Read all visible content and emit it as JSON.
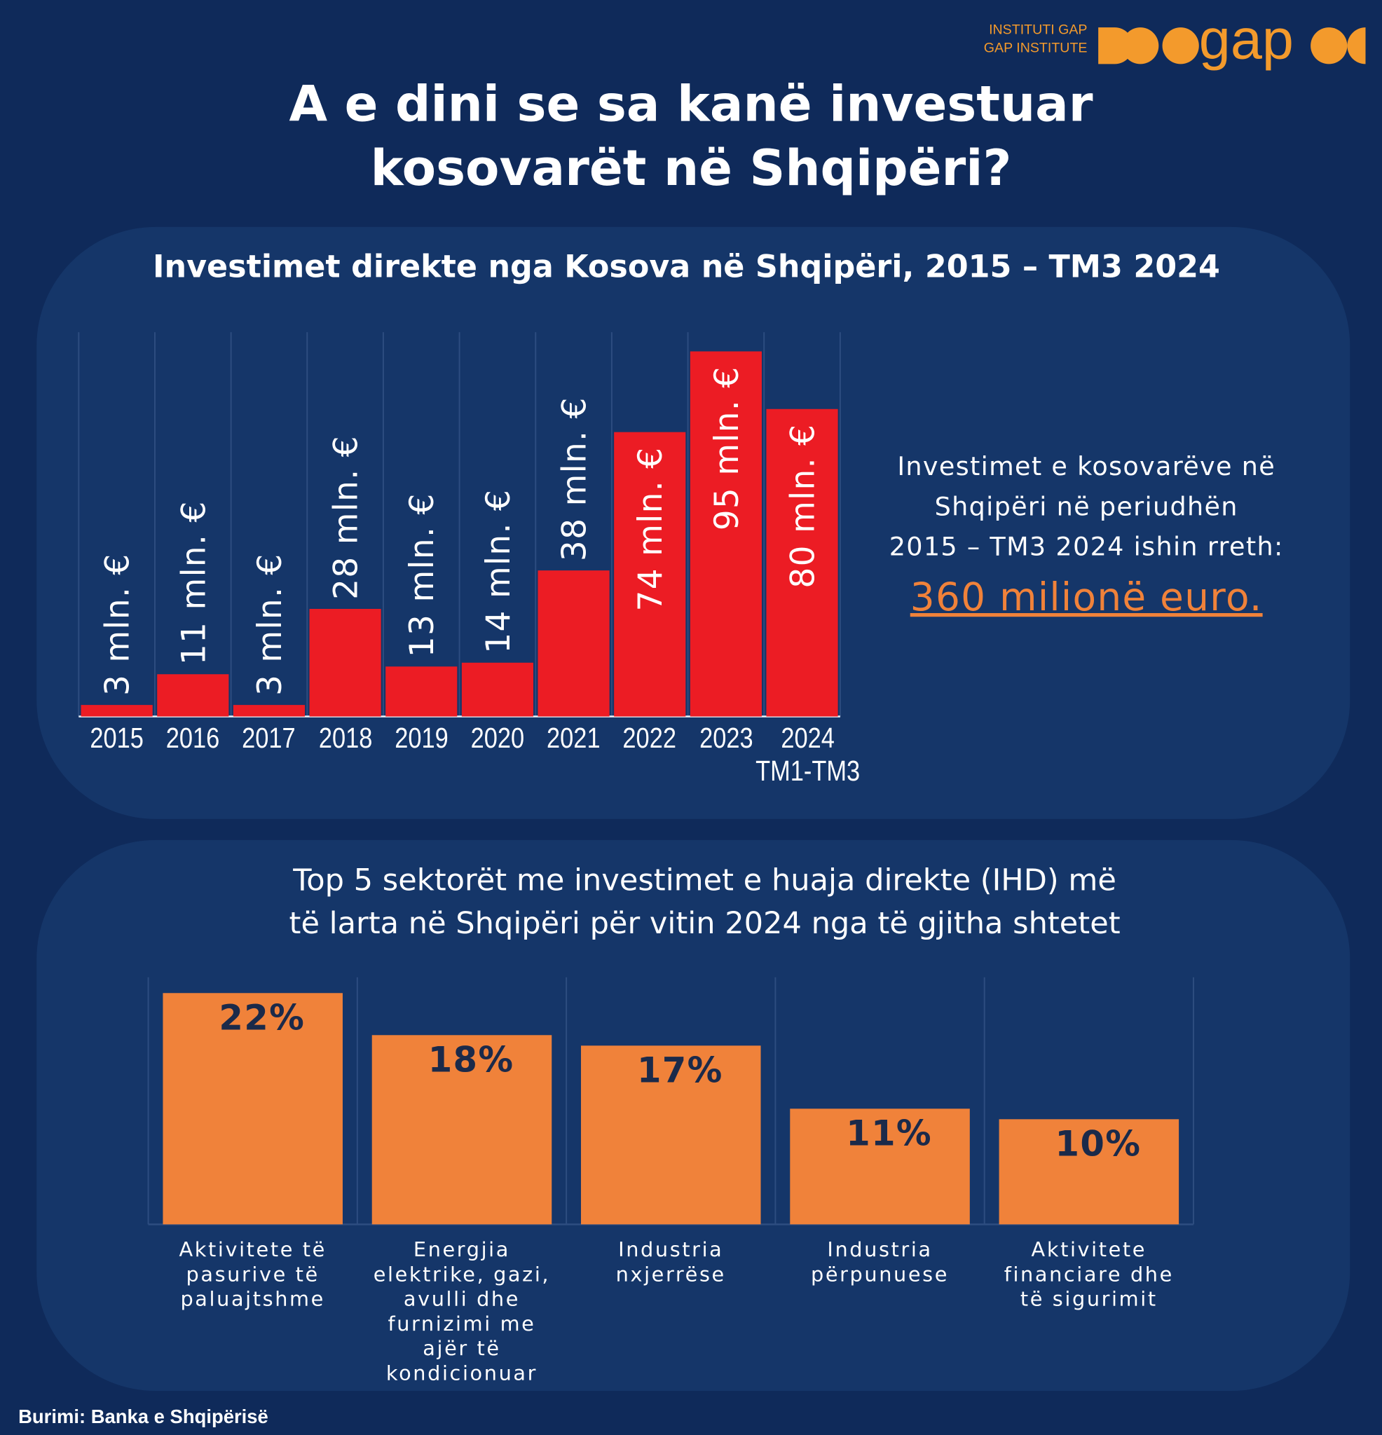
{
  "logo": {
    "lines": [
      "INSTITUTI GAP",
      "GAP INSTITUTE"
    ],
    "word": "gap"
  },
  "title": [
    "A e dini se sa kanë investuar",
    "kosovarët në Shqipëri?"
  ],
  "chart_data": [
    {
      "type": "bar",
      "title": "Investimet direkte nga Kosova në Shqipëri, 2015 – TM3 2024",
      "categories": [
        "2015",
        "2016",
        "2017",
        "2018",
        "2019",
        "2020",
        "2021",
        "2022",
        "2023",
        "2024\nTM1-TM3"
      ],
      "values": [
        3,
        11,
        3,
        28,
        13,
        14,
        38,
        74,
        95,
        80
      ],
      "value_labels": [
        "3 mln. €",
        "11 mln. €",
        "3 mln. €",
        "28 mln. €",
        "13 mln. €",
        "14 mln. €",
        "38 mln. €",
        "74 mln. €",
        "95 mln. €",
        "80 mln. €"
      ],
      "color": "#ec1c24",
      "ylim": [
        0,
        100
      ],
      "grid": true
    },
    {
      "type": "bar",
      "title": "Top 5 sektorët me investimet e huaja direkte (IHD) më\ntë larta në Shqipëri për vitin 2024 nga të gjitha shtetet",
      "categories": [
        "Aktivitete të pasurive të paluajtshme",
        "Energjia elektrike, gazi, avulli dhe furnizimi me ajër të kondicionuar",
        "Industria nxjerrëse",
        "Industria përpunuese",
        "Aktivitete financiare dhe të sigurimit"
      ],
      "values": [
        22,
        18,
        17,
        11,
        10
      ],
      "value_labels": [
        "22%",
        "18%",
        "17%",
        "11%",
        "10%"
      ],
      "color": "#f0823a",
      "ylim": [
        0,
        23.5
      ],
      "grid": true
    }
  ],
  "summary": {
    "text": "Investimet e kosovarëve në\nShqipëri në periudhën\n2015 – TM3 2024 ishin rreth:",
    "highlight": "360 milionë euro."
  },
  "source": "Burimi: Banka e Shqipërisë"
}
